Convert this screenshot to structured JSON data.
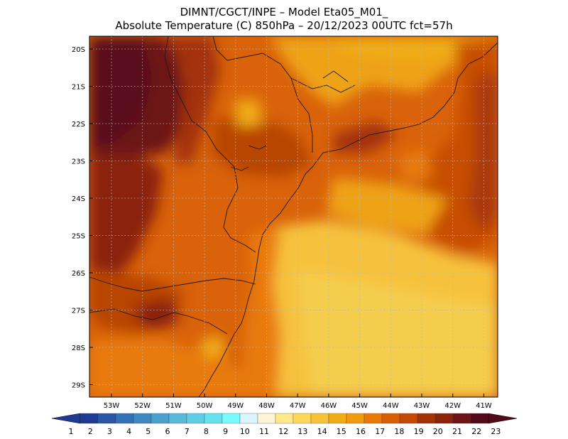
{
  "header": {
    "line1": "DIMNT/CGCT/INPE –  Model Eta05_M01_",
    "line2": "Absolute Temperature (C) 850hPa –  20/12/2023 00UTC fct=57h"
  },
  "map": {
    "lat_ticks": [
      "20S",
      "21S",
      "22S",
      "23S",
      "24S",
      "25S",
      "26S",
      "27S",
      "28S",
      "29S"
    ],
    "lon_ticks": [
      "53W",
      "52W",
      "51W",
      "50W",
      "49W",
      "48W",
      "47W",
      "46W",
      "45W",
      "44W",
      "43W",
      "42W",
      "41W"
    ],
    "grid": true,
    "grid_style": "dotted"
  },
  "colorbar": {
    "labels": [
      "1",
      "2",
      "3",
      "4",
      "5",
      "6",
      "7",
      "8",
      "9",
      "10",
      "11",
      "12",
      "13",
      "14",
      "15",
      "16",
      "17",
      "18",
      "19",
      "20",
      "21",
      "22",
      "23"
    ],
    "colors": [
      "#1f3a93",
      "#2a56a5",
      "#3470b4",
      "#3d89c0",
      "#4aa1cc",
      "#58b9d9",
      "#61cde5",
      "#66e2ef",
      "#7afcff",
      "#d9f6ff",
      "#fff5d6",
      "#ffe98a",
      "#ffd85a",
      "#f6c23c",
      "#f0ac14",
      "#f09a10",
      "#e97a08",
      "#d95f05",
      "#c24a04",
      "#a33307",
      "#8b2308",
      "#6d1416",
      "#520a1b"
    ]
  }
}
